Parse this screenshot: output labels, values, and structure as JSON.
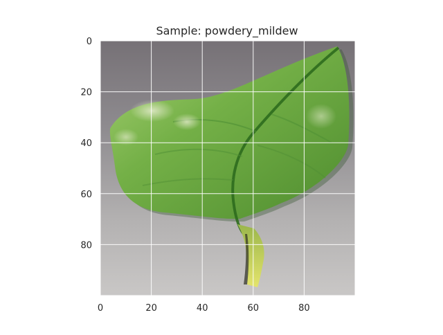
{
  "figure": {
    "title": "Sample: powdery_mildew",
    "image_subject": "green leaf on gray background",
    "x_ticks": [
      0,
      20,
      40,
      60,
      80
    ],
    "y_ticks": [
      0,
      20,
      40,
      60,
      80
    ],
    "x_range": [
      0,
      100
    ],
    "y_range": [
      0,
      100
    ],
    "grid": true,
    "colors": {
      "background_gray": "#8f8c90",
      "leaf_green": "#6eaa3f",
      "leaf_dark_green": "#3f7d24",
      "leaf_highlight": "#9bcb65",
      "stem_yellow": "#d9df54",
      "grid_line": "#ffffff",
      "tick_text": "#262626"
    }
  }
}
